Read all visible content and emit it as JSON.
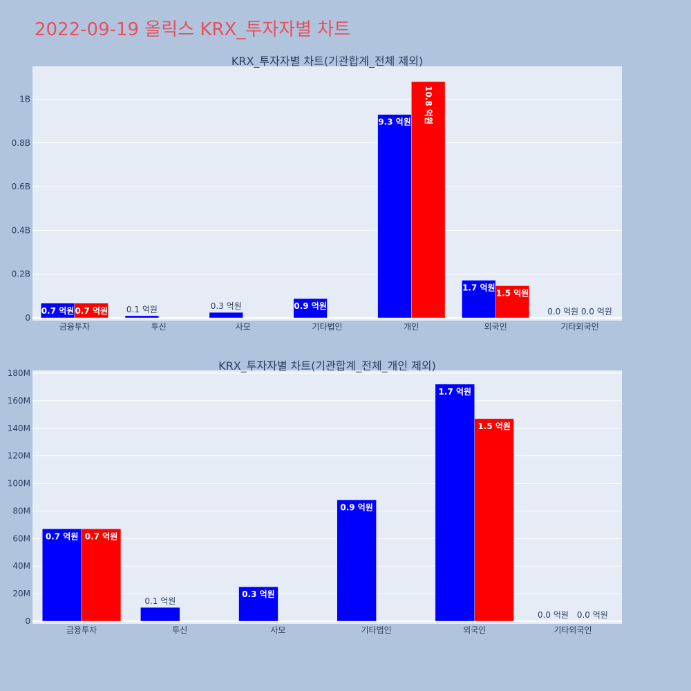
{
  "page_title": "2022-09-19 올릭스 KRX_투자자별 차트",
  "colors": {
    "buy": "#0000ff",
    "sell": "#ff0000",
    "plot_bg": "#e5ecf6",
    "page_bg": "#b0c4de",
    "title": "#e8505b"
  },
  "chart_data": [
    {
      "type": "bar",
      "title": "KRX_투자자별 차트(기관합계_전체 제외)",
      "categories": [
        "금융투자",
        "투신",
        "사모",
        "기타법인",
        "개인",
        "외국인",
        "기타외국인"
      ],
      "series": [
        {
          "values": [
            67000000,
            10000000,
            25000000,
            88000000,
            930000000,
            172000000,
            0
          ],
          "labels": [
            "0.7 억원",
            "0.1 억원",
            "0.3 억원",
            "0.9 억원",
            "9.3 억원",
            "1.7 억원",
            "0.0 억원"
          ]
        },
        {
          "values": [
            67000000,
            0,
            0,
            0,
            1080000000,
            147000000,
            0
          ],
          "labels": [
            "0.7 억원",
            "",
            "",
            "",
            "10.8 억원",
            "1.5 억원",
            "0.0 억원"
          ]
        }
      ],
      "ylim": [
        0,
        1150000000
      ],
      "yticks": [
        0,
        200000000,
        400000000,
        600000000,
        800000000,
        1000000000
      ],
      "ytick_labels": [
        "0",
        "0.2B",
        "0.4B",
        "0.6B",
        "0.8B",
        "1B"
      ],
      "grid": true
    },
    {
      "type": "bar",
      "title": "KRX_투자자별 차트(기관합계_전체_개인 제외)",
      "categories": [
        "금융투자",
        "투신",
        "사모",
        "기타법인",
        "외국인",
        "기타외국인"
      ],
      "series": [
        {
          "values": [
            67000000,
            10000000,
            25000000,
            88000000,
            172000000,
            0
          ],
          "labels": [
            "0.7 억원",
            "0.1 억원",
            "0.3 억원",
            "0.9 억원",
            "1.7 억원",
            "0.0 억원"
          ]
        },
        {
          "values": [
            67000000,
            0,
            0,
            0,
            147000000,
            0
          ],
          "labels": [
            "0.7 억원",
            "",
            "",
            "",
            "1.5 억원",
            "0.0 억원"
          ]
        }
      ],
      "ylim": [
        0,
        182000000
      ],
      "yticks": [
        0,
        20000000,
        40000000,
        60000000,
        80000000,
        100000000,
        120000000,
        140000000,
        160000000,
        180000000
      ],
      "ytick_labels": [
        "0",
        "20M",
        "40M",
        "60M",
        "80M",
        "100M",
        "120M",
        "140M",
        "160M",
        "180M"
      ],
      "grid": true
    }
  ]
}
